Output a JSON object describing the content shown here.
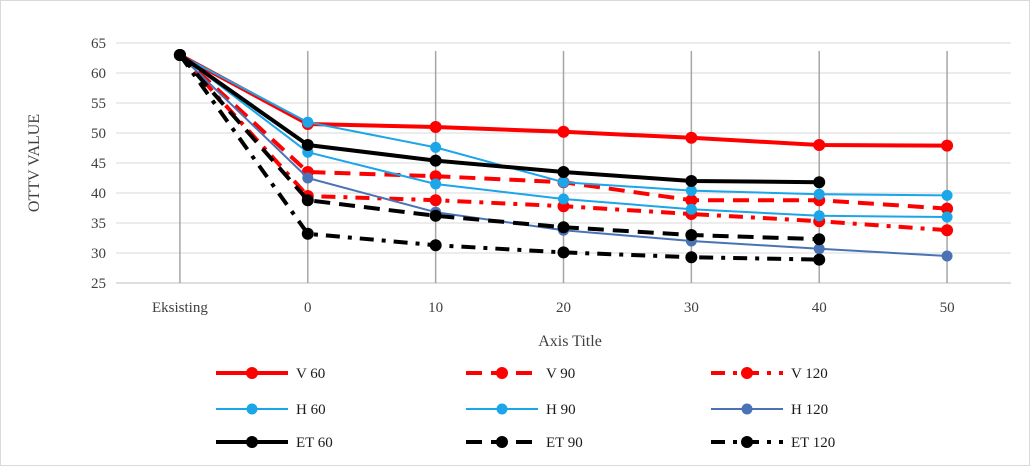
{
  "chart_data": {
    "type": "line",
    "title": "",
    "xlabel": "Axis Title",
    "ylabel": "OTTV VALUE",
    "categories": [
      "Eksisting",
      "0",
      "10",
      "20",
      "30",
      "40",
      "50"
    ],
    "ylim": [
      25,
      65
    ],
    "yticks": [
      25,
      30,
      35,
      40,
      45,
      50,
      55,
      60,
      65
    ],
    "grid": true,
    "legend_position": "bottom",
    "series": [
      {
        "name": "V 60",
        "color": "#ff0000",
        "style": "solid",
        "width": "thick",
        "values": [
          63,
          51.5,
          51,
          50.2,
          49.2,
          48.0,
          47.9
        ]
      },
      {
        "name": "V 90",
        "color": "#ff0000",
        "style": "dash",
        "width": "thick",
        "values": [
          63,
          43.5,
          42.8,
          41.8,
          38.8,
          38.8,
          37.4
        ]
      },
      {
        "name": "V 120",
        "color": "#ff0000",
        "style": "dashdot",
        "width": "thick",
        "values": [
          63,
          39.5,
          38.8,
          37.8,
          36.5,
          35.3,
          33.8
        ]
      },
      {
        "name": "H 60",
        "color": "#1aa6e8",
        "style": "solid",
        "width": "thin",
        "values": [
          63,
          51.8,
          47.6,
          41.8,
          40.4,
          39.8,
          39.6
        ]
      },
      {
        "name": "H 90",
        "color": "#1aa6e8",
        "style": "solid",
        "width": "thin",
        "values": [
          63,
          46.8,
          41.5,
          39.0,
          37.3,
          36.2,
          36.0
        ]
      },
      {
        "name": "H 120",
        "color": "#4a73b5",
        "style": "solid",
        "width": "thin",
        "values": [
          63,
          42.5,
          36.8,
          33.8,
          32.0,
          30.7,
          29.5
        ]
      },
      {
        "name": "ET 60",
        "color": "#000000",
        "style": "solid",
        "width": "thick",
        "values": [
          63,
          48.0,
          45.4,
          43.5,
          42.0,
          41.8,
          null
        ]
      },
      {
        "name": "ET 90",
        "color": "#000000",
        "style": "dash",
        "width": "thick",
        "values": [
          63,
          38.8,
          36.2,
          34.3,
          33.0,
          32.3,
          null
        ]
      },
      {
        "name": "ET 120",
        "color": "#000000",
        "style": "dashdot",
        "width": "thick",
        "values": [
          63,
          33.2,
          31.3,
          30.1,
          29.3,
          28.9,
          null
        ]
      }
    ]
  }
}
